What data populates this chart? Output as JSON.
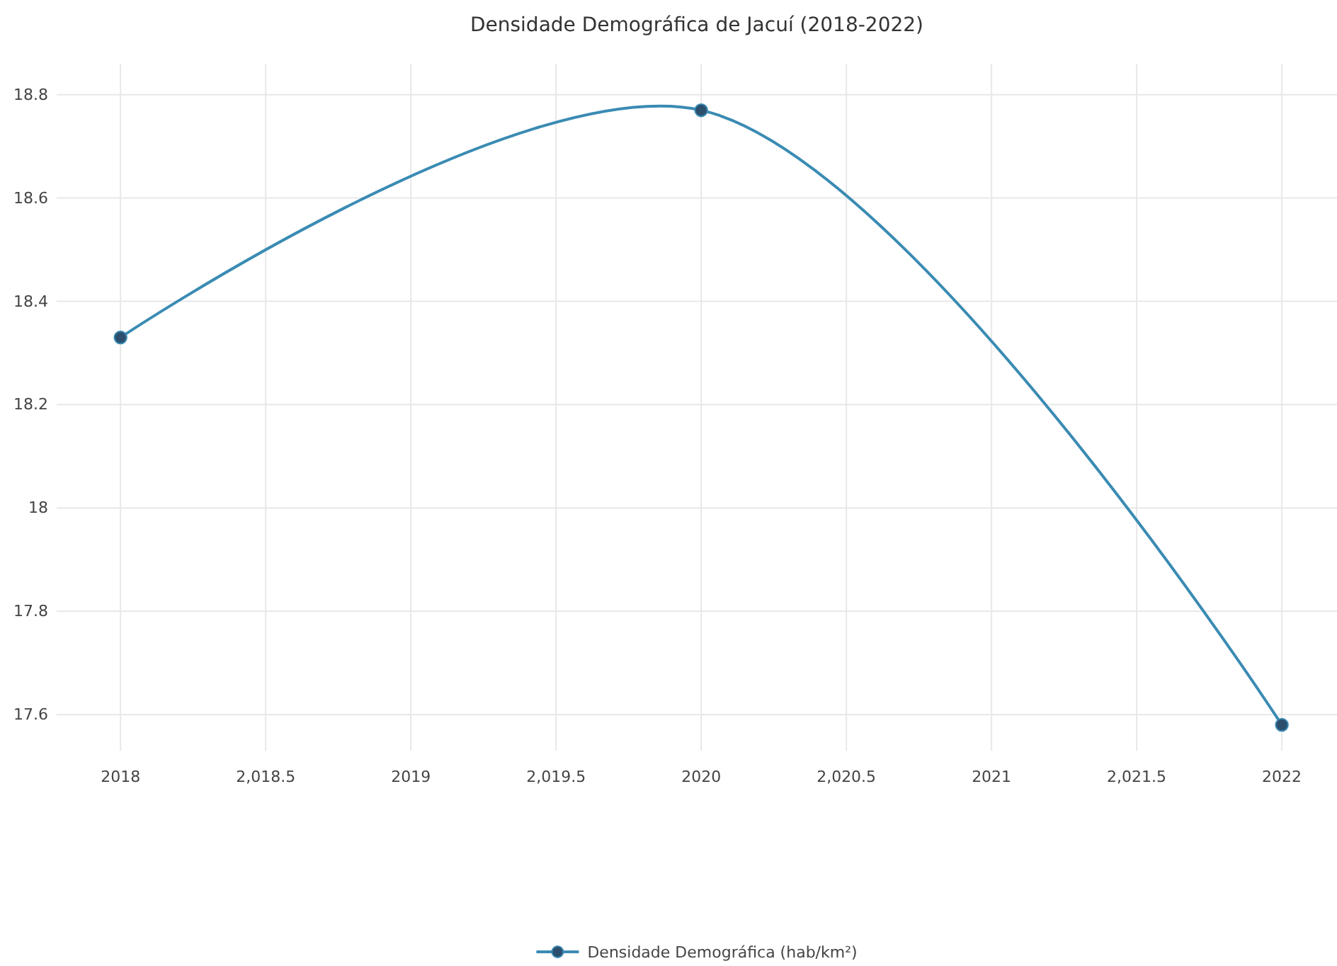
{
  "chart_data": {
    "type": "line",
    "title": "Densidade Demográfica de Jacuí (2018-2022)",
    "x": [
      2018,
      2020,
      2022
    ],
    "series": [
      {
        "name": "Densidade Demográfica (hab/km²)",
        "color": "#3a8bb3",
        "values": [
          18.33,
          18.77,
          17.58
        ]
      }
    ],
    "xlim": [
      2017.78,
      2022.19
    ],
    "xticks": [
      2018,
      {
        "value": 2018.5,
        "label": "2,018.5"
      },
      2019,
      {
        "value": 2019.5,
        "label": "2,019.5"
      },
      2020,
      {
        "value": 2020.5,
        "label": "2,020.5"
      },
      2021,
      {
        "value": 2021.5,
        "label": "2,021.5"
      },
      2022
    ],
    "ylim": [
      17.53,
      18.86
    ],
    "yticks": [
      17.6,
      17.8,
      18,
      18.2,
      18.4,
      18.6,
      18.8
    ],
    "grid": true,
    "legend": "bottom",
    "marker": "circle",
    "line_style": "solid"
  }
}
